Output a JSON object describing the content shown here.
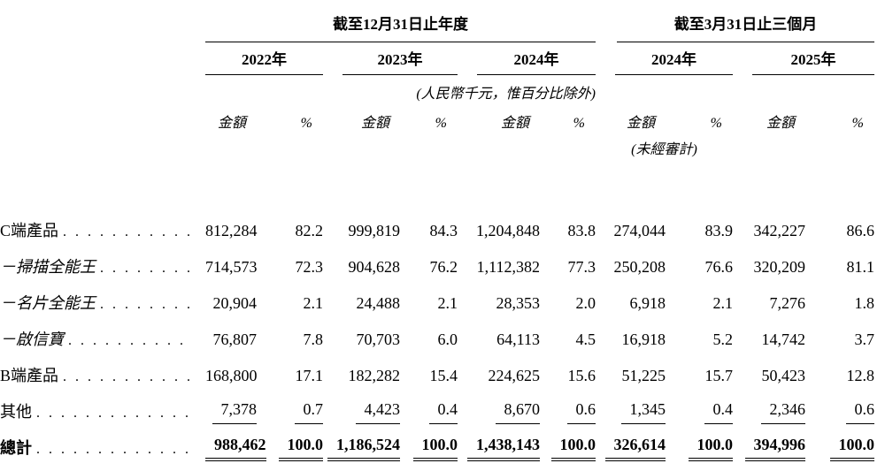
{
  "table": {
    "header": {
      "groups": [
        {
          "title": "截至12月31日止年度",
          "years": [
            "2022年",
            "2023年",
            "2024年"
          ]
        },
        {
          "title": "截至3月31日止三個月",
          "years": [
            "2024年",
            "2025年"
          ]
        }
      ],
      "unit_note": "(人民幣千元，惟百分比除外)",
      "amount_label": "金額",
      "percent_label": "%",
      "unaudited_note": "(未經審計)"
    },
    "rows": [
      {
        "label": "C端產品",
        "style": "normal",
        "values": [
          "812,284",
          "82.2",
          "999,819",
          "84.3",
          "1,204,848",
          "83.8",
          "274,044",
          "83.9",
          "342,227",
          "86.6"
        ]
      },
      {
        "label": "－掃描全能王",
        "style": "sub",
        "values": [
          "714,573",
          "72.3",
          "904,628",
          "76.2",
          "1,112,382",
          "77.3",
          "250,208",
          "76.6",
          "320,209",
          "81.1"
        ]
      },
      {
        "label": "－名片全能王",
        "style": "sub",
        "values": [
          "20,904",
          "2.1",
          "24,488",
          "2.1",
          "28,353",
          "2.0",
          "6,918",
          "2.1",
          "7,276",
          "1.8"
        ]
      },
      {
        "label": "－啟信寶",
        "style": "sub",
        "values": [
          "76,807",
          "7.8",
          "70,703",
          "6.0",
          "64,113",
          "4.5",
          "16,918",
          "5.2",
          "14,742",
          "3.7"
        ]
      },
      {
        "label": "B端產品",
        "style": "normal",
        "values": [
          "168,800",
          "17.1",
          "182,282",
          "15.4",
          "224,625",
          "15.6",
          "51,225",
          "15.7",
          "50,423",
          "12.8"
        ]
      },
      {
        "label": "其他",
        "style": "single-rule",
        "values": [
          "7,378",
          "0.7",
          "4,423",
          "0.4",
          "8,670",
          "0.6",
          "1,345",
          "0.4",
          "2,346",
          "0.6"
        ]
      },
      {
        "label": "總計",
        "style": "total",
        "values": [
          "988,462",
          "100.0",
          "1,186,524",
          "100.0",
          "1,438,143",
          "100.0",
          "326,614",
          "100.0",
          "394,996",
          "100.0"
        ]
      }
    ]
  }
}
